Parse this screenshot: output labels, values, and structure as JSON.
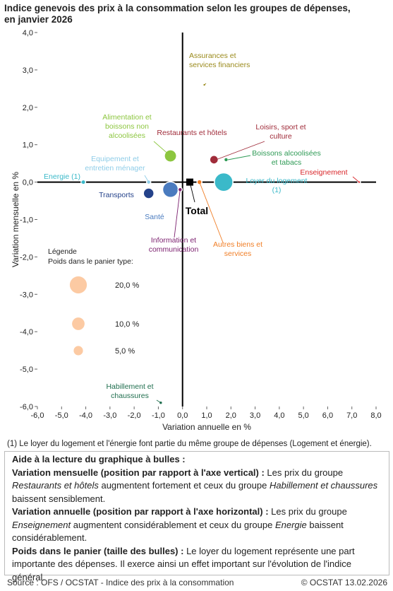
{
  "title_line1": "Indice genevois des prix à la consommation selon les groupes de dépenses,",
  "title_line2": "en janvier 2026",
  "chart_data": {
    "type": "scatter",
    "xlabel": "Variation annuelle en %",
    "ylabel": "Variation mensuelle en %",
    "xlim": [
      -6,
      8
    ],
    "ylim": [
      -6,
      4
    ],
    "xticks": [
      "-6,0",
      "-5,0",
      "-4,0",
      "-3,0",
      "-2,0",
      "-1,0",
      "0,0",
      "1,0",
      "2,0",
      "3,0",
      "4,0",
      "5,0",
      "6,0",
      "7,0",
      "8,0"
    ],
    "yticks": [
      "4,0",
      "3,0",
      "2,0",
      "1,0",
      "0,0",
      "-1,0",
      "-2,0",
      "-3,0",
      "-4,0",
      "-5,0",
      "-6,0"
    ],
    "grid": false,
    "points": [
      {
        "label": "Assurances et services financiers",
        "lines": [
          "Assurances et",
          "services financiers"
        ],
        "x": 0.9,
        "y": 2.6,
        "weight": 0.1,
        "color": "#9a8a1c"
      },
      {
        "label": "Alimentation et boissons non alcoolisées",
        "lines": [
          "Alimentation  et",
          "boissons non",
          "alcoolisées"
        ],
        "x": -0.5,
        "y": 0.7,
        "weight": 10.5,
        "color": "#8cc63f"
      },
      {
        "label": "Restaurants et hôtels",
        "lines": [
          "Restaurants et hôtels"
        ],
        "x": 1.3,
        "y": 0.6,
        "weight": 4.5,
        "color": "#a02c3a"
      },
      {
        "label": "Loisirs, sport et culture",
        "lines": [
          "Loisirs, sport et",
          "culture"
        ],
        "x": 1.3,
        "y": 0.6,
        "weight": 4.5,
        "color": "#a02c3a"
      },
      {
        "label": "Boissons alcoolisées et tabacs",
        "lines": [
          "Boissons alcoolisées",
          "et tabacs"
        ],
        "x": 1.8,
        "y": 0.6,
        "weight": 0.6,
        "color": "#2e9a55"
      },
      {
        "label": "Enseignement",
        "lines": [
          "Enseignement"
        ],
        "x": 7.3,
        "y": 0.0,
        "weight": 0.1,
        "color": "#d9262a"
      },
      {
        "label": "Loyer du logement (1)",
        "lines": [
          "Loyer du logement",
          "(1)"
        ],
        "x": 1.7,
        "y": 0.0,
        "weight": 27.0,
        "color": "#3bb9c9"
      },
      {
        "label": "Equipement et entretien ménager",
        "lines": [
          "Equipement  et",
          "entretien ménager"
        ],
        "x": -1.4,
        "y": 0.0,
        "weight": 0.6,
        "color": "#8fcde8"
      },
      {
        "label": "Energie (1)",
        "lines": [
          "Energie  (1)"
        ],
        "x": -4.1,
        "y": 0.0,
        "weight": 0.8,
        "color": "#3bb9c9"
      },
      {
        "label": "Transports",
        "lines": [
          "Transports"
        ],
        "x": -1.4,
        "y": -0.3,
        "weight": 7.5,
        "color": "#24428a"
      },
      {
        "label": "Santé",
        "lines": [
          "Santé"
        ],
        "x": -0.5,
        "y": -0.2,
        "weight": 18.5,
        "color": "#4a7bbf"
      },
      {
        "label": "Information et communication",
        "lines": [
          "Information et",
          "communication"
        ],
        "x": -0.1,
        "y": -0.2,
        "weight": 0.6,
        "color": "#7b1f6e"
      },
      {
        "label": "Autres biens et services",
        "lines": [
          "Autres biens et",
          "services"
        ],
        "x": 0.7,
        "y": 0.0,
        "weight": 1.0,
        "color": "#f07e26"
      },
      {
        "label": "Habillement et chaussures",
        "lines": [
          "Habillement  et",
          "chaussures"
        ],
        "x": -0.9,
        "y": -5.9,
        "weight": 0.3,
        "color": "#1f6e4e"
      },
      {
        "label": "Total",
        "lines": [
          "Total"
        ],
        "x": 0.3,
        "y": 0.0,
        "weight": 0,
        "color": "#000000",
        "marker": "square"
      }
    ],
    "legend": {
      "title": "Légende",
      "subtitle": "Poids dans le panier type:",
      "items": [
        {
          "label": "20,0 %",
          "weight": 20.0
        },
        {
          "label": "10,0 %",
          "weight": 10.0
        },
        {
          "label": "5,0 %",
          "weight": 5.0
        }
      ],
      "color": "#fccaa3",
      "placement": "bottom-left"
    }
  },
  "footnote": "(1) Le loyer du logement et l'énergie font partie du même groupe de dépenses (Logement et énergie).",
  "help": {
    "heading": "Aide à la lecture du graphique à bulles :",
    "p1_bold": "Variation mensuelle (position par rapport à l'axe vertical) :",
    "p1_a": " Les prix du groupe ",
    "p1_i1": "Restaurants et hôtels",
    "p1_b": " augmentent fortement et ceux du groupe ",
    "p1_i2": "Habillement et chaussures",
    "p1_c": " baissent sensiblement.",
    "p2_bold": "Variation annuelle (position par rapport à l'axe horizontal) :",
    "p2_a": "  Les prix du groupe ",
    "p2_i1": "Enseignement",
    "p2_b": " augmentent considérablement et ceux du groupe ",
    "p2_i2": "Energie",
    "p2_c": " baissent considérablement.",
    "p3_bold": "Poids dans le panier (taille des bulles) :",
    "p3_a": " Le loyer du logement représente une part importante des dépenses. Il exerce ainsi un effet important sur l'évolution de l'indice général."
  },
  "source": "Source : OFS / OCSTAT - Indice des prix à la consommation",
  "copyright": "© OCSTAT 13.02.2026"
}
